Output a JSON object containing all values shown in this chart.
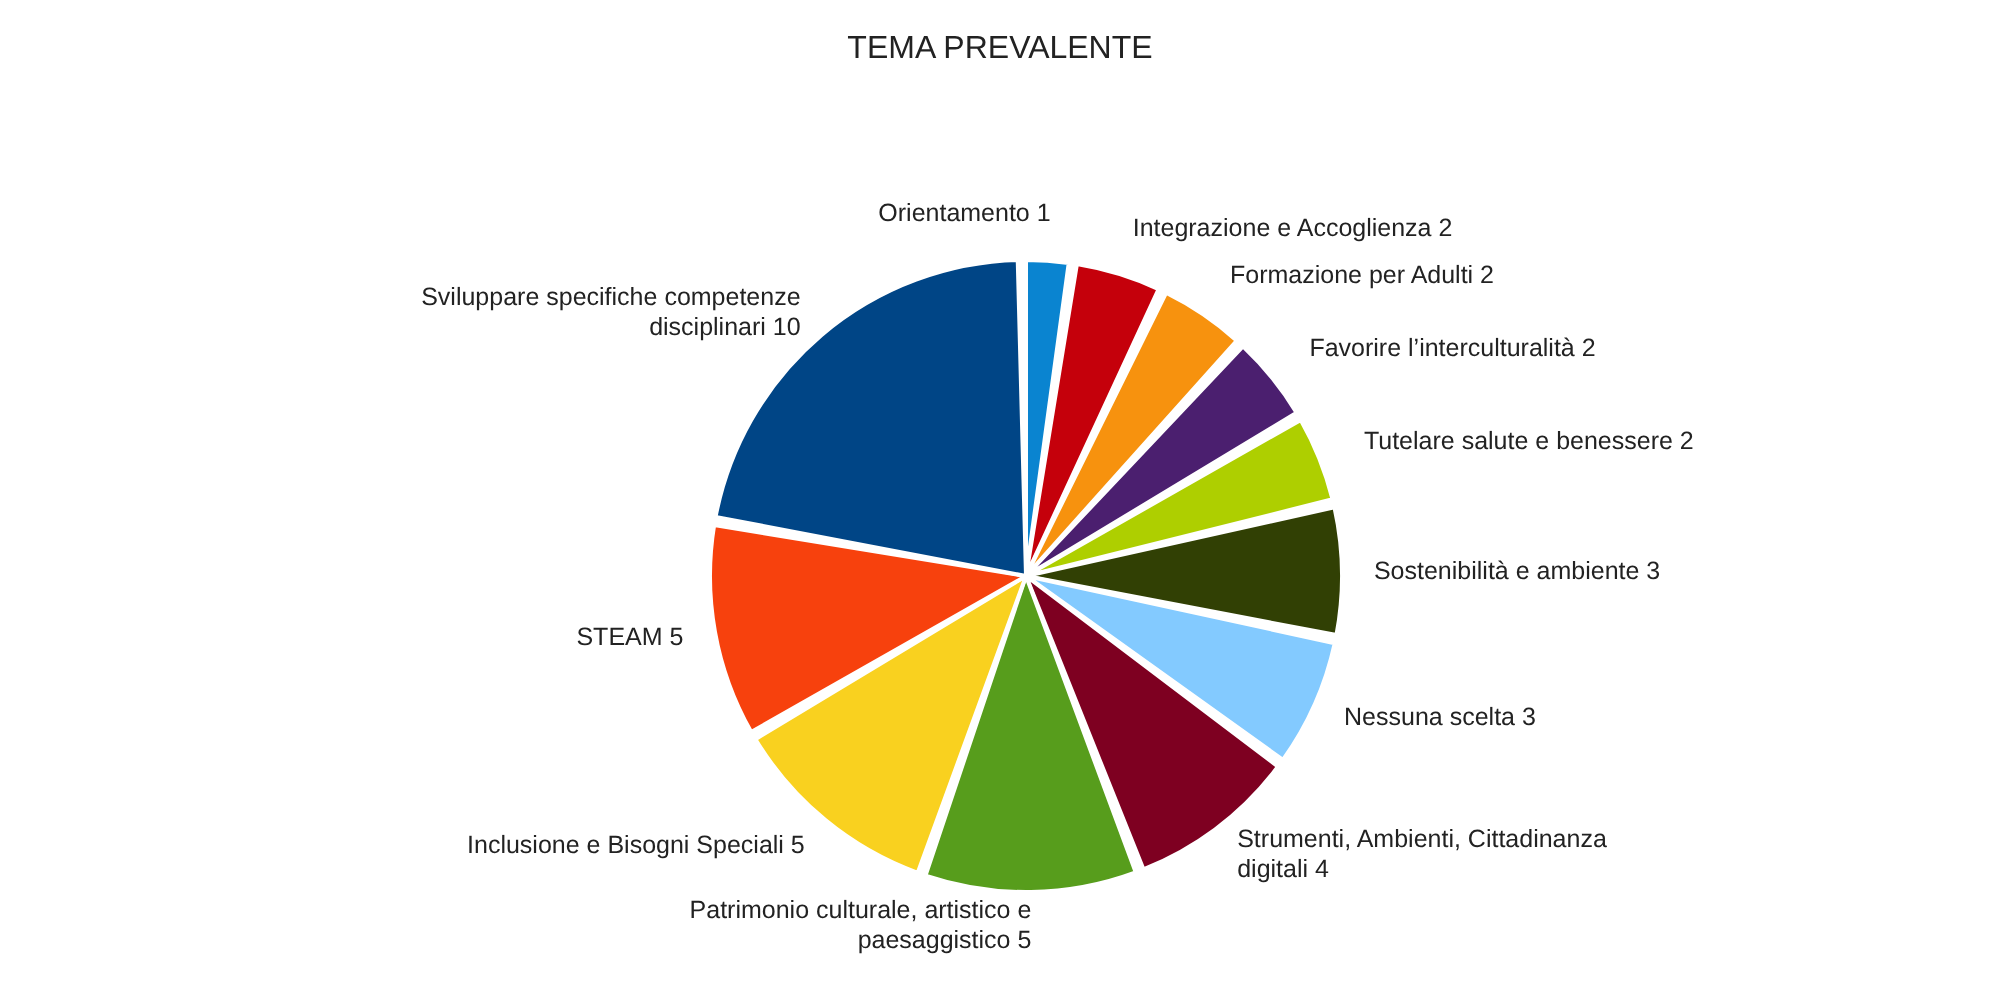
{
  "chart_data": {
    "type": "pie",
    "title": "TEMA PREVALENTE",
    "categories": [
      "Orientamento 1",
      "Integrazione e Accoglienza 2",
      "Formazione per Adulti 2",
      "Favorire l’interculturalità 2",
      "Tutelare salute e benessere  2",
      "Sostenibilità e ambiente 3",
      "Nessuna scelta 3",
      "Strumenti, Ambienti, Cittadinanza digitali  4",
      "Patrimonio culturale, artistico e paesaggistico  5",
      "Inclusione e Bisogni Speciali   5",
      "STEAM 5",
      "Sviluppare specifiche competenze disciplinari  10"
    ],
    "values": [
      1,
      2,
      2,
      2,
      2,
      3,
      3,
      4,
      5,
      5,
      5,
      10
    ],
    "colors": [
      "#0a84d0",
      "#c5000b",
      "#f7920e",
      "#4b1f6f",
      "#aecf00",
      "#314004",
      "#83caff",
      "#7e0021",
      "#579d1c",
      "#f9d11f",
      "#f7410d",
      "#004586"
    ]
  }
}
